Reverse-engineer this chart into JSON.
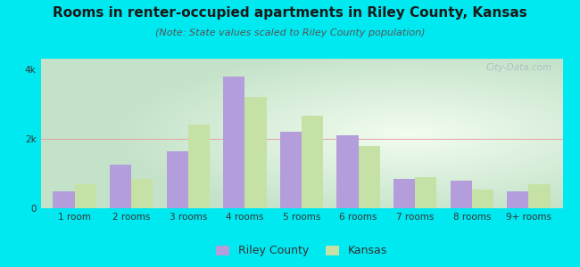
{
  "title": "Rooms in renter-occupied apartments in Riley County, Kansas",
  "subtitle": "(Note: State values scaled to Riley County population)",
  "categories": [
    "1 room",
    "2 rooms",
    "3 rooms",
    "4 rooms",
    "5 rooms",
    "6 rooms",
    "7 rooms",
    "8 rooms",
    "9+ rooms"
  ],
  "riley_county": [
    480,
    1250,
    1650,
    3800,
    2200,
    2100,
    850,
    800,
    480
  ],
  "kansas": [
    680,
    850,
    2400,
    3200,
    2650,
    1800,
    900,
    550,
    680
  ],
  "riley_color": "#b39ddb",
  "kansas_color": "#c5e1a5",
  "background_outer": "#00e8f0",
  "title_fontsize": 11,
  "subtitle_fontsize": 8,
  "legend_fontsize": 9,
  "tick_fontsize": 7.5,
  "ylim": [
    0,
    4300
  ],
  "yticks": [
    0,
    2000,
    4000
  ],
  "ytick_labels": [
    "0",
    "2k",
    "4k"
  ],
  "bar_width": 0.38,
  "legend_entries": [
    "Riley County",
    "Kansas"
  ],
  "watermark": "Ⓜ City-Data.com"
}
